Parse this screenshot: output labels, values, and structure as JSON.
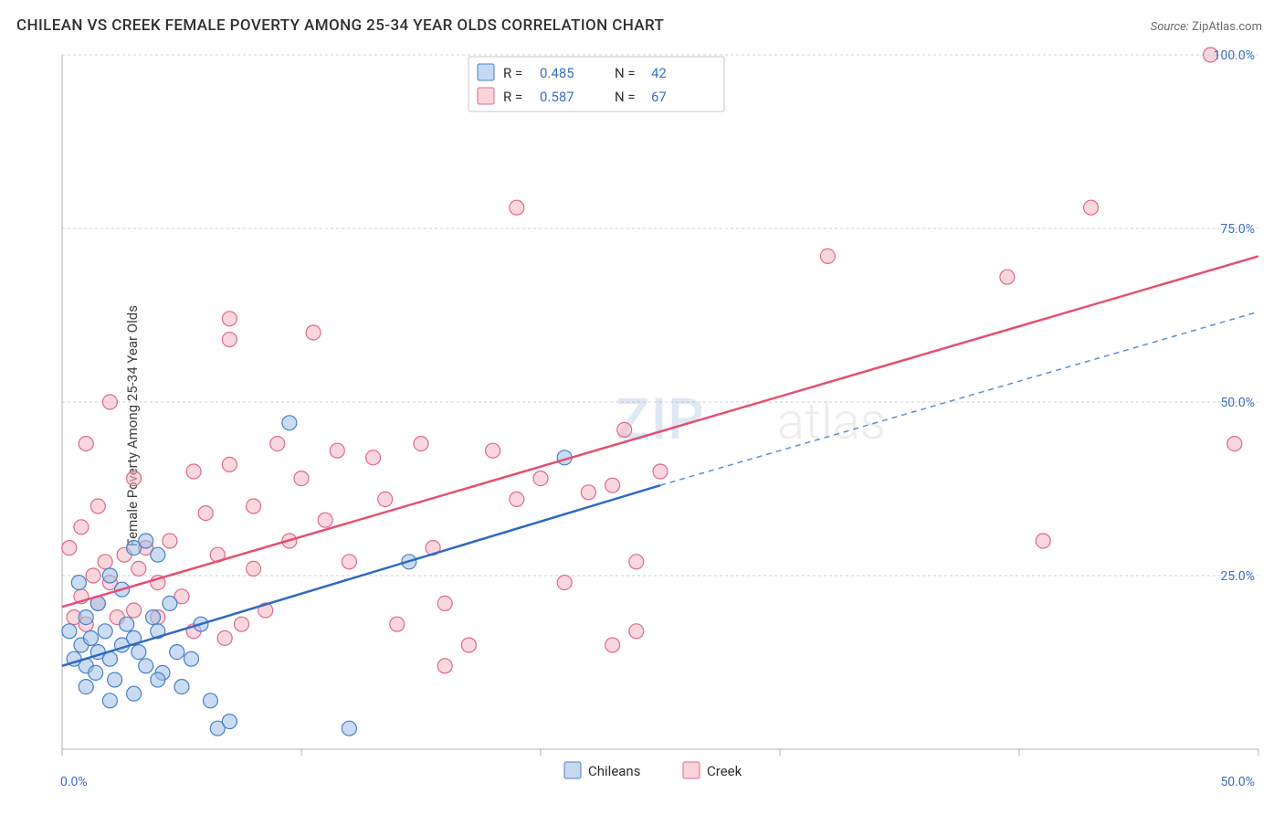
{
  "header": {
    "title": "CHILEAN VS CREEK FEMALE POVERTY AMONG 25-34 YEAR OLDS CORRELATION CHART",
    "source_label": "Source:",
    "source_name": "ZipAtlas.com"
  },
  "chart": {
    "type": "scatter",
    "ylabel": "Female Poverty Among 25-34 Year Olds",
    "watermark_a": "ZIP",
    "watermark_b": "atlas",
    "xlim": [
      0,
      50
    ],
    "ylim": [
      0,
      100
    ],
    "x_ticks": [
      0,
      10,
      20,
      30,
      40,
      50
    ],
    "y_ticks": [
      0,
      25,
      50,
      75,
      100
    ],
    "x_tick_labels": [
      "0.0%",
      "",
      "",
      "",
      "",
      "50.0%"
    ],
    "y_tick_labels": [
      "",
      "25.0%",
      "50.0%",
      "75.0%",
      "100.0%"
    ],
    "grid_color": "#d0d0d0",
    "background_color": "#ffffff",
    "series": [
      {
        "id": "a",
        "label": "Chileans",
        "color_fill": "#9dbfe8",
        "color_stroke": "#4a7fc7",
        "marker_radius": 8,
        "r": "0.485",
        "n": "42",
        "trend": {
          "x0": 0,
          "y0": 12,
          "x1": 25,
          "y1": 38,
          "ext_x1": 50,
          "ext_y1": 63
        },
        "points": [
          [
            0.5,
            13
          ],
          [
            0.8,
            15
          ],
          [
            1.0,
            12
          ],
          [
            1.2,
            16
          ],
          [
            1.4,
            11
          ],
          [
            1.5,
            14
          ],
          [
            1.8,
            17
          ],
          [
            2.0,
            13
          ],
          [
            2.2,
            10
          ],
          [
            2.5,
            15
          ],
          [
            2.7,
            18
          ],
          [
            3.0,
            16
          ],
          [
            3.2,
            14
          ],
          [
            3.5,
            12
          ],
          [
            3.8,
            19
          ],
          [
            4.0,
            17
          ],
          [
            4.2,
            11
          ],
          [
            4.5,
            21
          ],
          [
            4.8,
            14
          ],
          [
            5.0,
            9
          ],
          [
            5.4,
            13
          ],
          [
            5.8,
            18
          ],
          [
            6.2,
            7
          ],
          [
            6.5,
            3
          ],
          [
            7.0,
            4
          ],
          [
            3.0,
            29
          ],
          [
            3.5,
            30
          ],
          [
            4.0,
            28
          ],
          [
            2.0,
            25
          ],
          [
            2.5,
            23
          ],
          [
            1.5,
            21
          ],
          [
            1.0,
            19
          ],
          [
            0.7,
            24
          ],
          [
            0.3,
            17
          ],
          [
            1.0,
            9
          ],
          [
            2.0,
            7
          ],
          [
            3.0,
            8
          ],
          [
            4.0,
            10
          ],
          [
            9.5,
            47
          ],
          [
            14.5,
            27
          ],
          [
            21.0,
            42
          ],
          [
            12.0,
            3
          ]
        ]
      },
      {
        "id": "b",
        "label": "Creek",
        "color_fill": "#f4b6c2",
        "color_stroke": "#e06a87",
        "marker_radius": 8,
        "r": "0.587",
        "n": "67",
        "trend": {
          "x0": 0,
          "y0": 20.5,
          "x1": 50,
          "y1": 71
        },
        "points": [
          [
            0.5,
            19
          ],
          [
            0.8,
            22
          ],
          [
            1.0,
            18
          ],
          [
            1.3,
            25
          ],
          [
            1.5,
            21
          ],
          [
            1.8,
            27
          ],
          [
            2.0,
            24
          ],
          [
            2.3,
            19
          ],
          [
            2.6,
            28
          ],
          [
            3.0,
            20
          ],
          [
            3.2,
            26
          ],
          [
            3.5,
            29
          ],
          [
            4.0,
            24
          ],
          [
            4.5,
            30
          ],
          [
            5.0,
            22
          ],
          [
            5.5,
            40
          ],
          [
            6.0,
            34
          ],
          [
            6.5,
            28
          ],
          [
            7.0,
            41
          ],
          [
            7.5,
            18
          ],
          [
            8.0,
            35
          ],
          [
            8.5,
            20
          ],
          [
            9.0,
            44
          ],
          [
            9.5,
            30
          ],
          [
            10.0,
            39
          ],
          [
            10.5,
            60
          ],
          [
            11.0,
            33
          ],
          [
            11.5,
            43
          ],
          [
            12.0,
            27
          ],
          [
            13.0,
            42
          ],
          [
            13.5,
            36
          ],
          [
            14.0,
            18
          ],
          [
            15.0,
            44
          ],
          [
            15.5,
            29
          ],
          [
            16.0,
            21
          ],
          [
            17.0,
            15
          ],
          [
            18.0,
            43
          ],
          [
            19.0,
            36
          ],
          [
            19.0,
            78
          ],
          [
            20.0,
            39
          ],
          [
            21.0,
            24
          ],
          [
            22.0,
            37
          ],
          [
            23.0,
            38
          ],
          [
            23.0,
            15
          ],
          [
            24.0,
            17
          ],
          [
            25.0,
            40
          ],
          [
            32.0,
            71
          ],
          [
            39.5,
            68
          ],
          [
            43.0,
            78
          ],
          [
            41.0,
            30
          ],
          [
            48.0,
            100
          ],
          [
            49.0,
            44
          ],
          [
            2.0,
            50
          ],
          [
            7.0,
            59
          ],
          [
            7.0,
            62
          ],
          [
            1.0,
            44
          ],
          [
            0.3,
            29
          ],
          [
            0.8,
            32
          ],
          [
            1.5,
            35
          ],
          [
            3.0,
            39
          ],
          [
            4.0,
            19
          ],
          [
            5.5,
            17
          ],
          [
            6.8,
            16
          ],
          [
            16.0,
            12
          ],
          [
            23.5,
            46
          ],
          [
            24.0,
            27
          ],
          [
            8.0,
            26
          ]
        ]
      }
    ],
    "stats_legend": {
      "r_prefix": "R =",
      "n_prefix": "N ="
    },
    "bottom_legend": {
      "items": [
        "Chileans",
        "Creek"
      ]
    }
  }
}
